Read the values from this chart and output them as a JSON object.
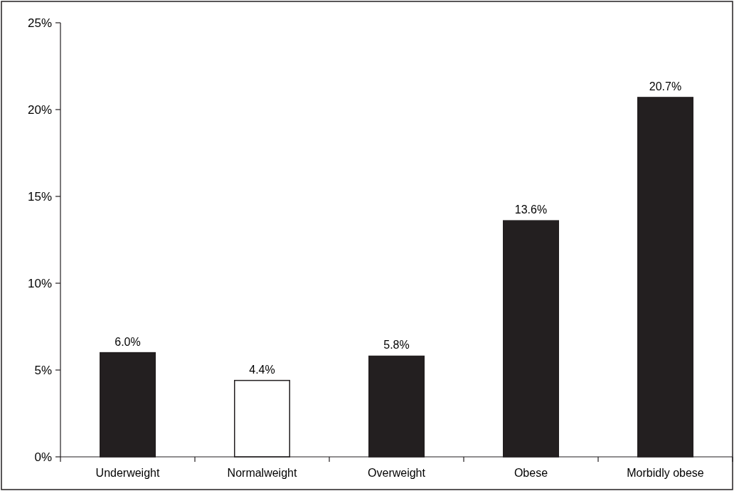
{
  "chart_data": {
    "type": "bar",
    "categories": [
      "Underweight",
      "Normalweight",
      "Overweight",
      "Obese",
      "Morbidly obese"
    ],
    "values": [
      6.0,
      4.4,
      5.8,
      13.6,
      20.7
    ],
    "colors": [
      "#231f20",
      "#ffffff",
      "#231f20",
      "#231f20",
      "#231f20"
    ],
    "value_labels": [
      "6.0%",
      "4.4%",
      "5.8%",
      "13.6%",
      "20.7%"
    ],
    "ylim": [
      0,
      25
    ],
    "yticks": [
      {
        "value": 0,
        "label": "0%"
      },
      {
        "value": 5,
        "label": "5%"
      },
      {
        "value": 10,
        "label": "10%"
      },
      {
        "value": 15,
        "label": "15%"
      },
      {
        "value": 20,
        "label": "20%"
      },
      {
        "value": 25,
        "label": "25%"
      }
    ],
    "grid": false
  }
}
